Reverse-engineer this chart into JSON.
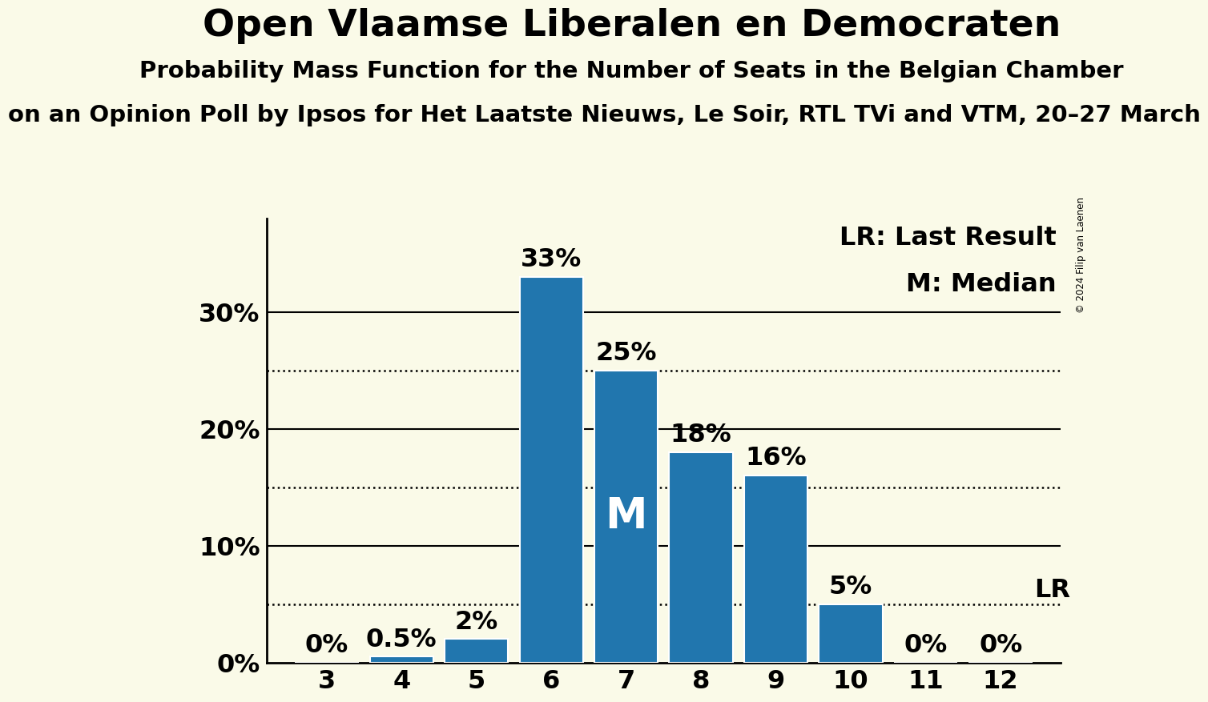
{
  "title": "Open Vlaamse Liberalen en Democraten",
  "subtitle": "Probability Mass Function for the Number of Seats in the Belgian Chamber",
  "subtitle2": "on an Opinion Poll by Ipsos for Het Laatste Nieuws, Le Soir, RTL TVi and VTM, 20–27 March",
  "copyright": "© 2024 Filip van Laenen",
  "seats": [
    3,
    4,
    5,
    6,
    7,
    8,
    9,
    10,
    11,
    12
  ],
  "probabilities": [
    0.0,
    0.5,
    2.0,
    33.0,
    25.0,
    18.0,
    16.0,
    5.0,
    0.0,
    0.0
  ],
  "bar_color": "#2176ae",
  "background_color": "#fafae8",
  "median_seat": 7,
  "lr_value": 5.0,
  "ylabel_ticks": [
    0,
    10,
    20,
    30
  ],
  "solid_lines": [
    10,
    20,
    30
  ],
  "dotted_lines": [
    5,
    15,
    25
  ],
  "title_fontsize": 34,
  "subtitle_fontsize": 21,
  "subtitle2_fontsize": 21,
  "bar_label_fontsize": 23,
  "legend_fontsize": 23,
  "tick_fontsize": 23,
  "median_label_fontsize": 38
}
